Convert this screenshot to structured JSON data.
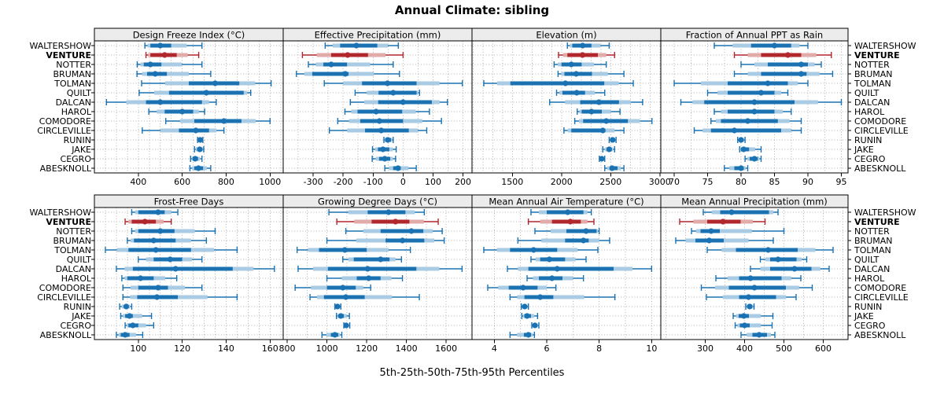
{
  "title": "Annual Climate: sibling",
  "caption": "5th-25th-50th-75th-95th Percentiles",
  "highlight_station": "VENTURE",
  "colors": {
    "series": "#1A72B2",
    "series_band": "#A9CBE4",
    "highlight": "#B1272D",
    "highlight_band": "#E0ABA9",
    "strip_bg": "#ECECEC",
    "grid": "#B3B3B3",
    "border": "#000000"
  },
  "stations": [
    "WALTERSHOW",
    "VENTURE",
    "NOTTER",
    "BRUMAN",
    "TOLMAN",
    "QUILT",
    "DALCAN",
    "HAROL",
    "COMODORE",
    "CIRCLEVILLE",
    "RUNIN",
    "JAKE",
    "CEGRO",
    "ABESKNOLL"
  ],
  "chart_data": {
    "type": "percentile-dotplot",
    "percentiles": [
      5,
      25,
      50,
      75,
      95
    ],
    "legend": "none",
    "grid": "dotted",
    "panels": [
      {
        "title": "Design Freeze Index (°C)",
        "xlim": [
          200,
          1060
        ],
        "ticks": [
          400,
          600,
          800,
          1000
        ],
        "grid_step": 50,
        "values": [
          [
            430,
            455,
            500,
            550,
            690
          ],
          [
            435,
            455,
            520,
            575,
            675
          ],
          [
            395,
            425,
            455,
            505,
            690
          ],
          [
            394,
            440,
            477,
            530,
            730
          ],
          [
            415,
            630,
            750,
            860,
            1005
          ],
          [
            404,
            540,
            710,
            880,
            912
          ],
          [
            255,
            435,
            500,
            690,
            755
          ],
          [
            448,
            520,
            600,
            650,
            702
          ],
          [
            525,
            655,
            790,
            870,
            1000
          ],
          [
            418,
            585,
            662,
            722,
            790
          ],
          [
            670,
            676,
            682,
            688,
            694
          ],
          [
            656,
            668,
            680,
            690,
            698
          ],
          [
            638,
            650,
            659,
            672,
            690
          ],
          [
            635,
            655,
            674,
            695,
            730
          ]
        ]
      },
      {
        "title": "Effective Precipitation (mm)",
        "xlim": [
          -400,
          230
        ],
        "ticks": [
          -300,
          -200,
          -100,
          0,
          100,
          200
        ],
        "grid_step": 50,
        "values": [
          [
            -260,
            -210,
            -156,
            -86,
            -16
          ],
          [
            -336,
            -240,
            -185,
            -117,
            0
          ],
          [
            -316,
            -266,
            -240,
            -187,
            -33
          ],
          [
            -356,
            -303,
            -193,
            -182,
            -12
          ],
          [
            -263,
            -137,
            -52,
            45,
            198
          ],
          [
            -160,
            -82,
            -33,
            45,
            55
          ],
          [
            -176,
            -83,
            0,
            96,
            148
          ],
          [
            -194,
            -152,
            -90,
            -3,
            88
          ],
          [
            -218,
            -143,
            -79,
            0,
            128
          ],
          [
            -246,
            -127,
            -73,
            19,
            79
          ],
          [
            -64,
            -59,
            -51,
            -40,
            -33
          ],
          [
            -102,
            -84,
            -67,
            -46,
            -23
          ],
          [
            -103,
            -80,
            -61,
            -43,
            -25
          ],
          [
            -61,
            -33,
            -17,
            -8,
            44
          ]
        ]
      },
      {
        "title": "Elevation (m)",
        "xlim": [
          1090,
          3010
        ],
        "ticks": [
          1500,
          2000,
          2500,
          3000
        ],
        "grid_step": 100,
        "values": [
          [
            2060,
            2110,
            2215,
            2305,
            2485
          ],
          [
            1970,
            2060,
            2215,
            2370,
            2540
          ],
          [
            1925,
            2000,
            2100,
            2205,
            2455
          ],
          [
            1965,
            2030,
            2150,
            2310,
            2635
          ],
          [
            1210,
            1480,
            2040,
            2435,
            2730
          ],
          [
            1950,
            2010,
            2155,
            2240,
            2440
          ],
          [
            1880,
            2190,
            2380,
            2585,
            2825
          ],
          [
            2160,
            2205,
            2305,
            2410,
            2595
          ],
          [
            2135,
            2220,
            2455,
            2675,
            2920
          ],
          [
            2025,
            2100,
            2420,
            2445,
            2635
          ],
          [
            2485,
            2505,
            2520,
            2540,
            2555
          ],
          [
            2420,
            2460,
            2485,
            2510,
            2540
          ],
          [
            2385,
            2395,
            2410,
            2425,
            2440
          ],
          [
            2440,
            2490,
            2515,
            2570,
            2635
          ]
        ]
      },
      {
        "title": "Fraction of Annual PPT as Rain",
        "xlim": [
          68,
          96
        ],
        "ticks": [
          70,
          75,
          80,
          85,
          90,
          95
        ],
        "grid_step": 2.5,
        "values": [
          [
            76,
            81.5,
            85,
            87.5,
            90
          ],
          [
            79,
            83,
            87,
            89,
            93.5
          ],
          [
            80,
            84,
            89,
            90,
            92
          ],
          [
            79,
            83,
            89,
            89.8,
            93.7
          ],
          [
            70,
            78,
            84,
            87,
            90
          ],
          [
            75,
            78,
            83,
            85,
            87
          ],
          [
            71,
            74.5,
            82,
            88,
            95
          ],
          [
            76,
            78,
            82,
            85,
            87.5
          ],
          [
            75.5,
            77,
            81,
            85.5,
            89
          ],
          [
            73,
            75.5,
            79,
            86,
            89
          ],
          [
            79.5,
            79.8,
            80,
            80.3,
            80.6
          ],
          [
            79.8,
            80,
            80.4,
            81.2,
            83
          ],
          [
            80.6,
            81.3,
            82,
            82.5,
            83
          ],
          [
            77.5,
            79,
            80,
            80.4,
            81
          ]
        ]
      },
      {
        "title": "Frost-Free Days",
        "xlim": [
          80,
          166
        ],
        "ticks": [
          100,
          120,
          140,
          160
        ],
        "grid_step": 5,
        "values": [
          [
            97,
            100,
            109,
            112,
            118
          ],
          [
            94,
            97,
            103,
            108,
            115
          ],
          [
            97,
            100,
            110,
            116.5,
            135
          ],
          [
            95,
            98,
            107,
            117,
            131
          ],
          [
            85,
            95.5,
            108,
            124,
            145
          ],
          [
            100,
            107,
            114.5,
            120,
            129
          ],
          [
            90,
            97.5,
            117,
            143,
            162
          ],
          [
            92.5,
            95,
            101,
            107,
            117.5
          ],
          [
            93,
            100,
            109,
            113.5,
            129
          ],
          [
            93,
            99.5,
            108.5,
            118,
            145
          ],
          [
            91.5,
            93.5,
            94.5,
            95.5,
            97
          ],
          [
            92,
            94,
            96,
            97.5,
            106
          ],
          [
            94,
            95.5,
            97.5,
            100,
            107
          ],
          [
            90,
            92,
            94,
            96,
            102
          ]
        ]
      },
      {
        "title": "Growing Degree Days (°C)",
        "xlim": [
          780,
          1730
        ],
        "ticks": [
          800,
          1000,
          1200,
          1400,
          1600
        ],
        "grid_step": 100,
        "values": [
          [
            1010,
            1205,
            1310,
            1395,
            1490
          ],
          [
            1050,
            1225,
            1345,
            1415,
            1560
          ],
          [
            1095,
            1270,
            1425,
            1485,
            1580
          ],
          [
            1000,
            1295,
            1380,
            1490,
            1590
          ],
          [
            850,
            960,
            1090,
            1200,
            1420
          ],
          [
            1080,
            1135,
            1270,
            1315,
            1375
          ],
          [
            855,
            1005,
            1205,
            1450,
            1680
          ],
          [
            1000,
            1150,
            1210,
            1270,
            1380
          ],
          [
            840,
            1000,
            1080,
            1145,
            1220
          ],
          [
            915,
            985,
            1095,
            1190,
            1465
          ],
          [
            1040,
            1047,
            1053,
            1062,
            1070
          ],
          [
            1048,
            1058,
            1070,
            1085,
            1113
          ],
          [
            1085,
            1090,
            1097,
            1107,
            1115
          ],
          [
            975,
            1020,
            1040,
            1057,
            1075
          ]
        ]
      },
      {
        "title": "Mean Annual Air Temperature (°C)",
        "xlim": [
          3.15,
          10.35
        ],
        "ticks": [
          4,
          6,
          8,
          10
        ],
        "grid_step": 1,
        "values": [
          [
            5.4,
            6.0,
            6.8,
            7.4,
            7.7
          ],
          [
            5.3,
            6.2,
            6.9,
            7.3,
            7.8
          ],
          [
            5.55,
            6.75,
            7.5,
            7.9,
            8.0
          ],
          [
            4.9,
            6.7,
            7.4,
            7.6,
            8.4
          ],
          [
            3.6,
            4.6,
            5.5,
            6.4,
            7.95
          ],
          [
            5.4,
            5.75,
            6.1,
            6.7,
            7.5
          ],
          [
            4.5,
            5.3,
            6.4,
            8.55,
            10.0
          ],
          [
            5.25,
            5.7,
            6.2,
            6.6,
            7.4
          ],
          [
            3.75,
            4.55,
            5.1,
            5.65,
            6.35
          ],
          [
            4.6,
            5.15,
            5.75,
            6.25,
            8.6
          ],
          [
            5.03,
            5.1,
            5.16,
            5.23,
            5.3
          ],
          [
            5.05,
            5.15,
            5.25,
            5.4,
            5.65
          ],
          [
            5.43,
            5.5,
            5.55,
            5.62,
            5.7
          ],
          [
            4.6,
            5.13,
            5.3,
            5.4,
            5.53
          ]
        ]
      },
      {
        "title": "Mean Annual Precipitation (mm)",
        "xlim": [
          187,
          663
        ],
        "ticks": [
          300,
          400,
          500,
          600
        ],
        "grid_step": 50,
        "values": [
          [
            295,
            338,
            367,
            462,
            485
          ],
          [
            235,
            305,
            345,
            390,
            452
          ],
          [
            265,
            288,
            315,
            337,
            500
          ],
          [
            225,
            275,
            310,
            347,
            473
          ],
          [
            305,
            378,
            460,
            535,
            625
          ],
          [
            440,
            465,
            485,
            532,
            558
          ],
          [
            415,
            465,
            527,
            570,
            615
          ],
          [
            327,
            386,
            415,
            494,
            543
          ],
          [
            290,
            360,
            425,
            505,
            572
          ],
          [
            303,
            386,
            410,
            480,
            531
          ],
          [
            403,
            408,
            413,
            419,
            424
          ],
          [
            371,
            385,
            398,
            411,
            472
          ],
          [
            376,
            388,
            400,
            413,
            470
          ],
          [
            391,
            420,
            437,
            457,
            477
          ]
        ]
      }
    ]
  }
}
